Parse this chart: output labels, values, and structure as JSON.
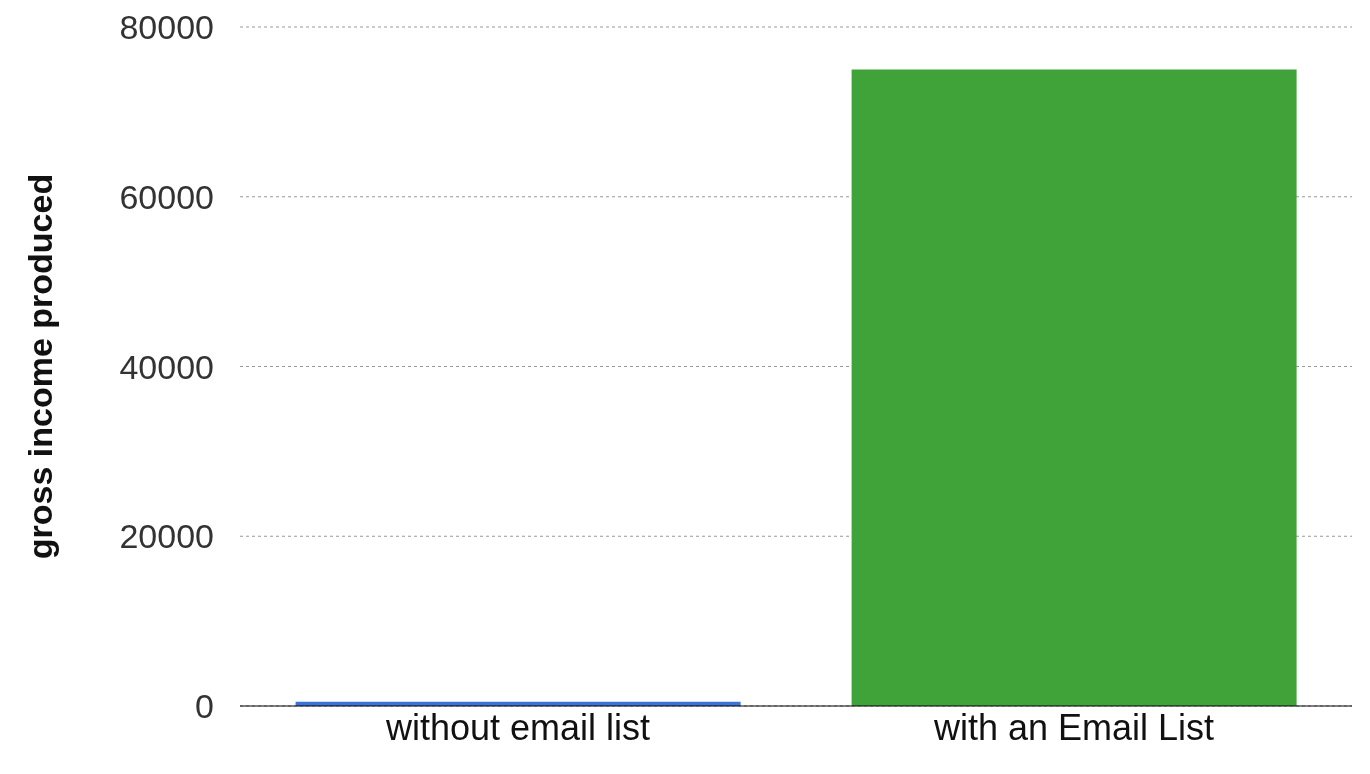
{
  "chart_data": {
    "type": "bar",
    "ylabel": "gross income produced",
    "categories": [
      "without email list",
      "with an Email List"
    ],
    "values": [
      500,
      75000
    ],
    "colors": [
      "#3b74d6",
      "#3fa33a"
    ],
    "ylim": [
      0,
      80000
    ],
    "yticks": [
      0,
      20000,
      40000,
      60000,
      80000
    ],
    "grid": "y"
  }
}
